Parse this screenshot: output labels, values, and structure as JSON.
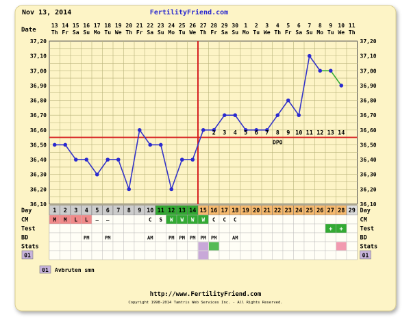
{
  "header": {
    "date": "Nov 13, 2014",
    "site": "FertilityFriend.com"
  },
  "labels": {
    "date": "Date",
    "day": "Day",
    "cm": "CM",
    "test": "Test",
    "bd": "BD",
    "stats": "Stats"
  },
  "legend": {
    "code": "01",
    "text": "Avbruten smn"
  },
  "footer": {
    "url": "http://www.FertilityFriend.com",
    "copyright": "Copyright 1998-2014 Tamtris Web Services Inc. - All Rights Reserved."
  },
  "colors": {
    "background": "#fdf4c6",
    "line": "#3434c8",
    "point": "#2a2ad0",
    "coverline": "#d62020",
    "grid": "#b8b27a",
    "follicular": "#cccccc",
    "fertile": "#33aa33",
    "luteal": "#f5b96e",
    "cm_period": "#f08a8a",
    "cm_fertile": "#33aa33",
    "test_pos": "#33aa33",
    "stats_purple": "#c8a8d8",
    "stats_green": "#55bb55",
    "stats_pink": "#f29ab0",
    "legend_box": "#c8b4dc",
    "green_segment": "#33aa33"
  },
  "chart_data": {
    "type": "line",
    "ylim": [
      36.1,
      37.2
    ],
    "yticks": [
      "37,20",
      "37,10",
      "37,00",
      "36,90",
      "36,80",
      "36,70",
      "36,60",
      "36,50",
      "36,40",
      "36,30",
      "36,20",
      "36,10"
    ],
    "dates_day": [
      "13",
      "14",
      "15",
      "16",
      "17",
      "18",
      "19",
      "20",
      "21",
      "22",
      "23",
      "24",
      "25",
      "26",
      "27",
      "28",
      "29",
      "30",
      "1",
      "2",
      "3",
      "4",
      "5",
      "6",
      "7",
      "8",
      "9",
      "10",
      "11"
    ],
    "dates_weekday": [
      "Th",
      "Fr",
      "Sa",
      "Su",
      "Mo",
      "Tu",
      "We",
      "Th",
      "Fr",
      "Sa",
      "Su",
      "Mo",
      "Tu",
      "We",
      "Th",
      "Fr",
      "Sa",
      "Su",
      "Mo",
      "Tu",
      "We",
      "Th",
      "Fr",
      "Sa",
      "Su",
      "Mo",
      "Tu",
      "We",
      "Th"
    ],
    "cycle_days": [
      "1",
      "2",
      "3",
      "4",
      "5",
      "6",
      "7",
      "8",
      "9",
      "10",
      "11",
      "12",
      "13",
      "14",
      "15",
      "16",
      "17",
      "18",
      "19",
      "20",
      "21",
      "22",
      "23",
      "24",
      "25",
      "26",
      "27",
      "28",
      "29"
    ],
    "series": [
      {
        "values": [
          36.5,
          36.5,
          36.4,
          36.4,
          36.3,
          36.4,
          36.4,
          36.2,
          36.6,
          36.5,
          36.5,
          36.2,
          36.4,
          36.4,
          36.6,
          36.6,
          36.7,
          36.7,
          36.6,
          36.6,
          36.6,
          36.7,
          36.8,
          36.7,
          37.1,
          37.0,
          37.0,
          36.9,
          null
        ]
      }
    ],
    "coverline": 36.55,
    "ovulation_day": 14,
    "dpo": {
      "label": "DPO",
      "numbers": [
        "2",
        "3",
        "4",
        "5",
        "6",
        "7",
        "8",
        "9",
        "10",
        "11",
        "12",
        "13",
        "14"
      ]
    },
    "cm": [
      "M",
      "M",
      "L",
      "L",
      "–",
      "–",
      "",
      "",
      "",
      "C",
      "S",
      "W",
      "W",
      "W",
      "W",
      "C",
      "C",
      "C",
      "",
      "",
      "",
      "",
      "",
      "",
      "",
      "",
      "",
      "",
      ""
    ],
    "test": [
      "",
      "",
      "",
      "",
      "",
      "",
      "",
      "",
      "",
      "",
      "",
      "",
      "",
      "",
      "",
      "",
      "",
      "",
      "",
      "",
      "",
      "",
      "",
      "",
      "",
      "",
      "+",
      "+",
      ""
    ],
    "bd": [
      "",
      "",
      "",
      "PM",
      "",
      "PM",
      "",
      "",
      "",
      "AM",
      "",
      "PM",
      "PM",
      "PM",
      "PM",
      "PM",
      "",
      "AM",
      "",
      "",
      "",
      "",
      "",
      "",
      "",
      "",
      "",
      "",
      ""
    ],
    "stats_marks": [
      {
        "day": 15,
        "color": "#c8a8d8"
      },
      {
        "day": 16,
        "color": "#55bb55"
      },
      {
        "day": 28,
        "color": "#f29ab0"
      }
    ],
    "stats_code": "01",
    "grid": true
  }
}
